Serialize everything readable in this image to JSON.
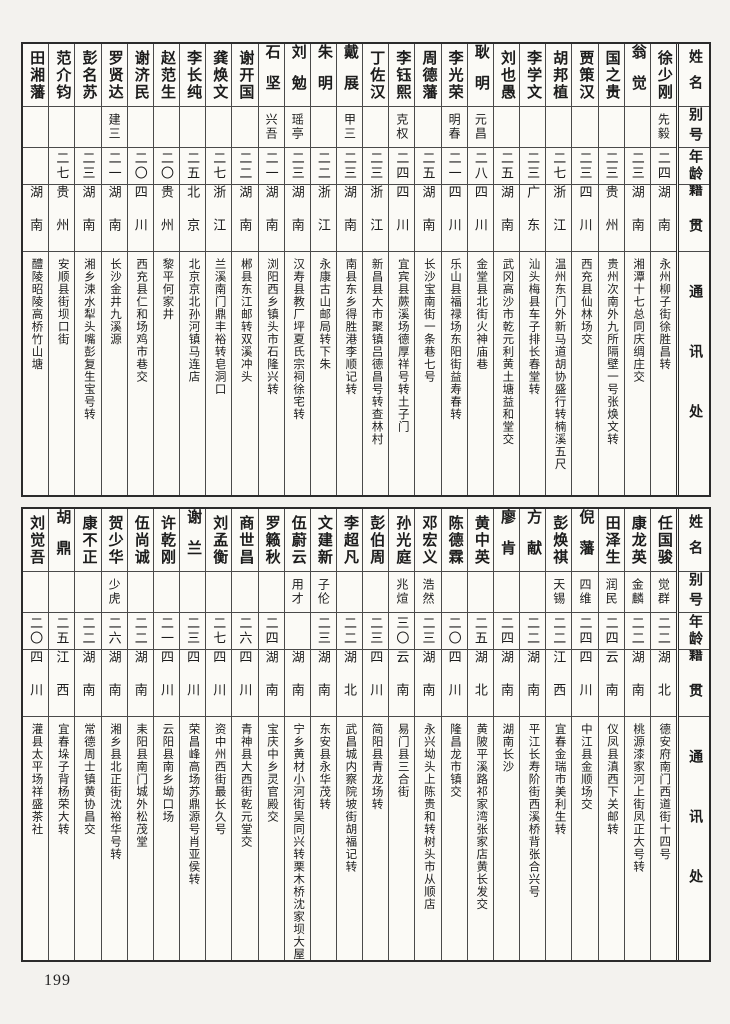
{
  "page_number": "199",
  "colors": {
    "ink": "#1c1c1c",
    "border": "#4a4a4a",
    "paper": "#f3f2ee",
    "table_bg": "#fbfaf6"
  },
  "header_labels": {
    "name": "姓名",
    "alias": "别号",
    "age": "年龄",
    "native": "籍贯",
    "address": "通讯处"
  },
  "sections": [
    {
      "entries": [
        {
          "name": "徐少刚",
          "alias": "先毅",
          "age": "二四",
          "native": "湖南",
          "address": "永州柳子街徐胜昌转"
        },
        {
          "name": "翁觉",
          "alias": "",
          "age": "二三",
          "native": "湖南",
          "address": "湘潭十七总同庆绸庄交"
        },
        {
          "name": "国之贵",
          "alias": "",
          "age": "二三",
          "native": "贵州",
          "address": "贵州次南外九所隔壁一号张焕文转"
        },
        {
          "name": "贾策汉",
          "alias": "",
          "age": "二三",
          "native": "四川",
          "address": "西充县仙林场交"
        },
        {
          "name": "胡邦植",
          "alias": "",
          "age": "二七",
          "native": "浙江",
          "address": "温州东门外新马道胡协盛行转楠溪五尺"
        },
        {
          "name": "李学文",
          "alias": "",
          "age": "二三",
          "native": "广东",
          "address": "汕头梅县车子排长春堂转"
        },
        {
          "name": "刘也愚",
          "alias": "",
          "age": "二五",
          "native": "湖南",
          "address": "武冈高沙市乾元利黄土塘益和堂交"
        },
        {
          "name": "耿明",
          "alias": "元昌",
          "age": "二八",
          "native": "四川",
          "address": "金堂县北街火神庙巷"
        },
        {
          "name": "李光荣",
          "alias": "明春",
          "age": "二一",
          "native": "四川",
          "address": "乐山县福禄场东阳街益寿春转"
        },
        {
          "name": "周德藩",
          "alias": "",
          "age": "二五",
          "native": "湖南",
          "address": "长沙宝南街一条巷七号"
        },
        {
          "name": "李钰熙",
          "alias": "克权",
          "age": "二四",
          "native": "四川",
          "address": "宜宾县蕨溪场德厚祥号转土子门"
        },
        {
          "name": "丁佐汉",
          "alias": "",
          "age": "二三",
          "native": "浙江",
          "address": "新昌县大市聚镇吕德昌号转查林村"
        },
        {
          "name": "戴展",
          "alias": "甲三",
          "age": "二三",
          "native": "湖南",
          "address": "南县东乡得胜港李顺记转"
        },
        {
          "name": "朱明",
          "alias": "",
          "age": "二二",
          "native": "浙江",
          "address": "永康古山邮局转下朱"
        },
        {
          "name": "刘勉",
          "alias": "瑶亭",
          "age": "二三",
          "native": "湖南",
          "address": "汉寿县教厂坪夏氏宗祠徐宅转"
        },
        {
          "name": "石坚",
          "alias": "兴吾",
          "age": "二一",
          "native": "湖南",
          "address": "浏阳西乡镇头市石隆兴转"
        },
        {
          "name": "谢开国",
          "alias": "",
          "age": "二二",
          "native": "湖南",
          "address": "郴县东江邮转双溪冲头"
        },
        {
          "name": "龚焕文",
          "alias": "",
          "age": "二七",
          "native": "浙江",
          "address": "兰溪南门鼎丰裕转皂洞口"
        },
        {
          "name": "李长纯",
          "alias": "",
          "age": "二五",
          "native": "北京",
          "address": "北京京北孙河镇马连店"
        },
        {
          "name": "赵范生",
          "alias": "",
          "age": "二〇",
          "native": "贵州",
          "address": "黎平何家井"
        },
        {
          "name": "谢济民",
          "alias": "",
          "age": "二〇",
          "native": "四川",
          "address": "西充县仁和场鸡市巷交"
        },
        {
          "name": "罗贤达",
          "alias": "建三",
          "age": "二一",
          "native": "湖南",
          "address": "长沙金井九溪源"
        },
        {
          "name": "彭名苏",
          "alias": "",
          "age": "二三",
          "native": "湖南",
          "address": "湘乡涑水犁头嘴彭复生宝号转"
        },
        {
          "name": "范介钧",
          "alias": "",
          "age": "二七",
          "native": "贵州",
          "address": "安顺县街坝口街"
        },
        {
          "name": "田湘藩",
          "alias": "",
          "age": "",
          "native": "湖南",
          "address": "醴陵昭陵高桥竹山塘"
        }
      ]
    },
    {
      "entries": [
        {
          "name": "任国骏",
          "alias": "觉群",
          "age": "二二",
          "native": "湖北",
          "address": "德安府南门西道街十四号"
        },
        {
          "name": "康龙英",
          "alias": "金麟",
          "age": "二二",
          "native": "湖南",
          "address": "桃源漆家河上街凤正大号转"
        },
        {
          "name": "田泽生",
          "alias": "润民",
          "age": "二四",
          "native": "云南",
          "address": "仪凤县滇西下关邮转"
        },
        {
          "name": "倪藩",
          "alias": "四维",
          "age": "二四",
          "native": "四川",
          "address": "中江县金顺场交"
        },
        {
          "name": "彭焕祺",
          "alias": "天锡",
          "age": "二二",
          "native": "江西",
          "address": "宜春金瑞市美利生转"
        },
        {
          "name": "方献",
          "alias": "",
          "age": "二二",
          "native": "湖南",
          "address": "平江长寿阶街西溪桥背张合兴号"
        },
        {
          "name": "廖肯",
          "alias": "",
          "age": "二四",
          "native": "湖南",
          "address": "湖南长沙"
        },
        {
          "name": "黄中英",
          "alias": "",
          "age": "二五",
          "native": "湖北",
          "address": "黄陂平溪路祁家湾张家店黄长发交"
        },
        {
          "name": "陈德霖",
          "alias": "",
          "age": "二〇",
          "native": "四川",
          "address": "隆昌龙市镇交"
        },
        {
          "name": "邓宏义",
          "alias": "浩然",
          "age": "二三",
          "native": "湖南",
          "address": "永兴坳头上陈贵和转树头市从顺店"
        },
        {
          "name": "孙光庭",
          "alias": "兆煊",
          "age": "三〇",
          "native": "云南",
          "address": "易门县三合街"
        },
        {
          "name": "彭伯周",
          "alias": "",
          "age": "二三",
          "native": "四川",
          "address": "简阳县青龙场转"
        },
        {
          "name": "李超凡",
          "alias": "",
          "age": "二二",
          "native": "湖北",
          "address": "武昌城内察院坡街胡福记转"
        },
        {
          "name": "文建新",
          "alias": "子伦",
          "age": "二三",
          "native": "湖南",
          "address": "东安县永华茂转"
        },
        {
          "name": "伍蔚云",
          "alias": "用才",
          "age": "",
          "native": "湖南",
          "address": "宁乡黄材小河街吴同兴转栗木桥沈家坝大屋湾"
        },
        {
          "name": "罗籁秋",
          "alias": "",
          "age": "二四",
          "native": "湖南",
          "address": "宝庆中乡灵官殿交"
        },
        {
          "name": "商世昌",
          "alias": "",
          "age": "二六",
          "native": "四川",
          "address": "青神县大西街乾元堂交"
        },
        {
          "name": "刘孟衡",
          "alias": "",
          "age": "二七",
          "native": "四川",
          "address": "资中州西街最长久号"
        },
        {
          "name": "谢兰",
          "alias": "",
          "age": "二三",
          "native": "四川",
          "address": "荣昌峰高场苏鼎源号肖亚侯转"
        },
        {
          "name": "许乾刚",
          "alias": "",
          "age": "二一",
          "native": "四川",
          "address": "云阳县南乡坳口场"
        },
        {
          "name": "伍尚诚",
          "alias": "",
          "age": "二二",
          "native": "湖南",
          "address": "耒阳县南门城外松茂堂"
        },
        {
          "name": "贺少华",
          "alias": "少虎",
          "age": "二六",
          "native": "湖南",
          "address": "湘乡县北正街沈裕华号转"
        },
        {
          "name": "康不正",
          "alias": "",
          "age": "二二",
          "native": "湖南",
          "address": "常德周士镇黄协昌交"
        },
        {
          "name": "胡鼎",
          "alias": "",
          "age": "二五",
          "native": "江西",
          "address": "宜春垛子背杨荣大转"
        },
        {
          "name": "刘觉吾",
          "alias": "",
          "age": "二〇",
          "native": "四川",
          "address": "灌县太平场祥盛茶社"
        }
      ]
    }
  ]
}
